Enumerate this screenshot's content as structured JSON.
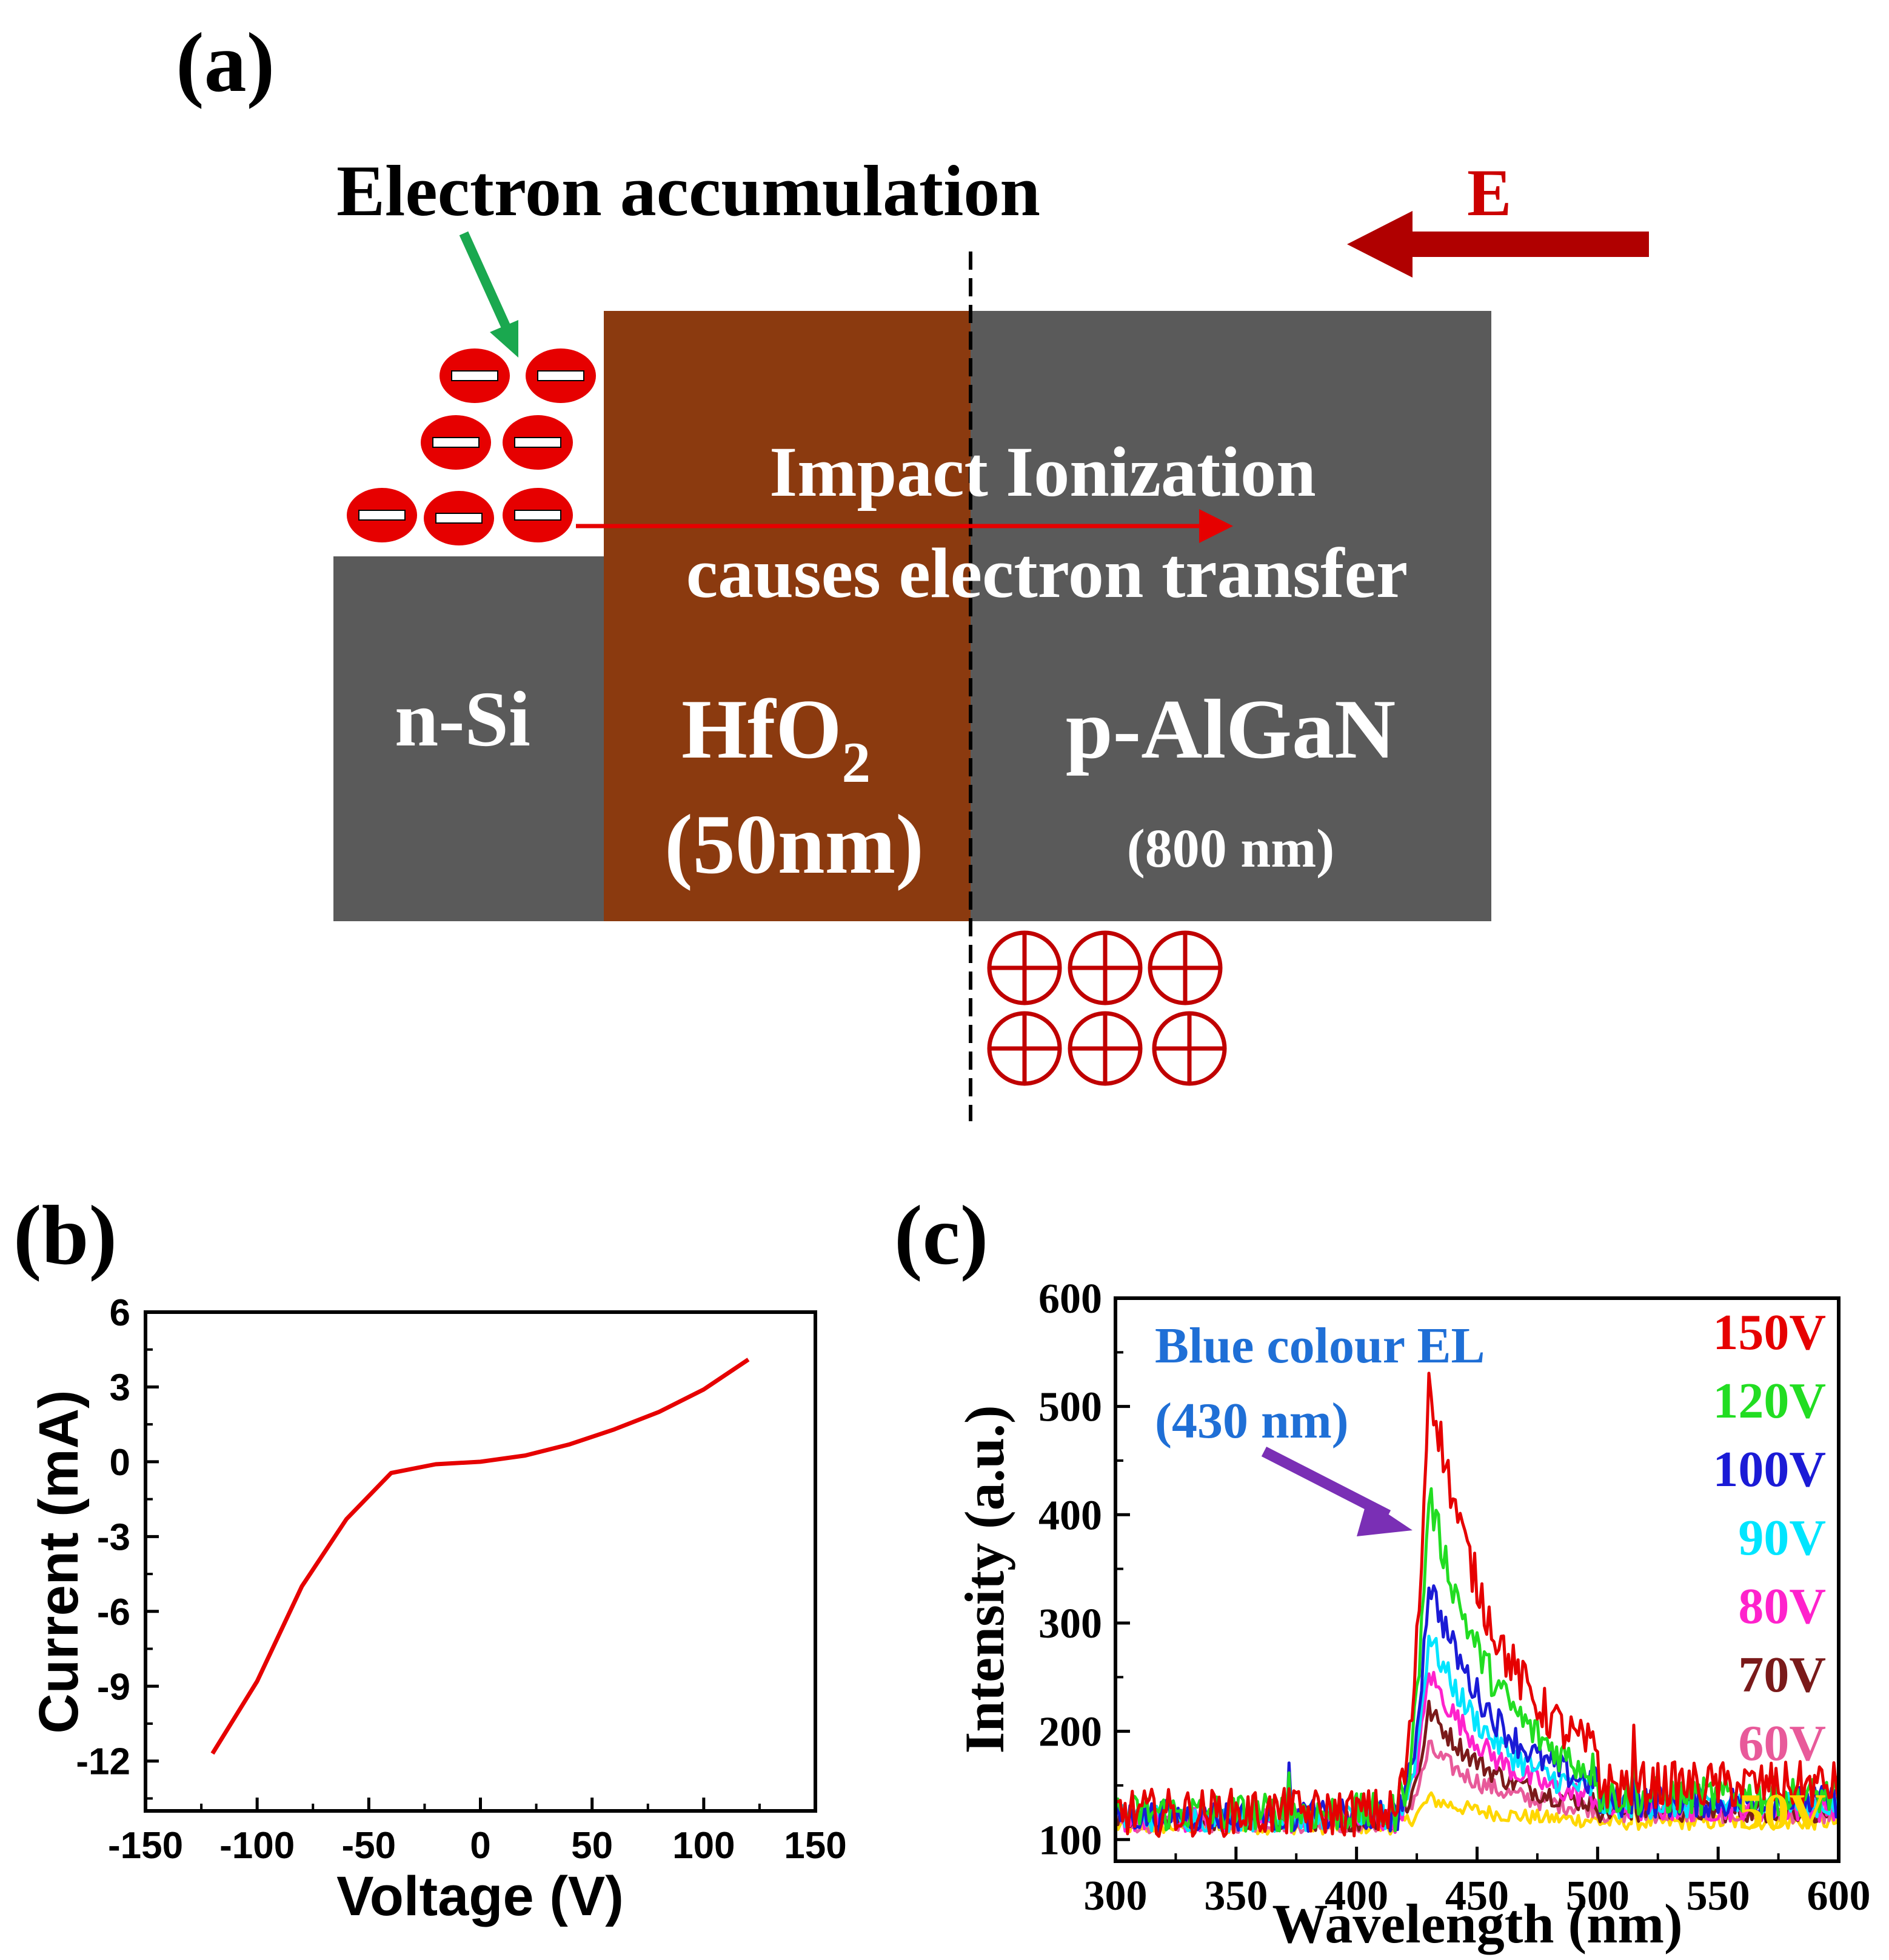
{
  "panel_a": {
    "label": "(a)",
    "top_annotation": "Electron accumulation",
    "field_label": "E",
    "impact_line1": "Impact Ionization",
    "impact_line2": "causes electron transfer",
    "nsi_label": "n-Si",
    "hfo2_main": "HfO",
    "hfo2_sub": "2",
    "hfo2_thickness": "(50nm)",
    "algan_label": "p-AlGaN",
    "algan_thickness": "(800 nm)",
    "colors": {
      "layer_gray": "#5a5a5a",
      "hfo2_brown": "#8b3a0f",
      "charge_red": "#e60000",
      "field_red": "#b00000",
      "green_arrow": "#1aa84f"
    },
    "icons": {
      "electron": "minus-circle-icon",
      "hole": "plus-circle-icon"
    }
  },
  "chart_data": [
    {
      "panel_label": "(b)",
      "type": "line",
      "title": "",
      "xlabel": "Voltage (V)",
      "ylabel": "Current (mA)",
      "xlim": [
        -150,
        150
      ],
      "ylim": [
        -14,
        6
      ],
      "xticks": [
        -150,
        -100,
        -50,
        0,
        50,
        100,
        150
      ],
      "yticks": [
        6,
        3,
        0,
        -3,
        -6,
        -9,
        -12
      ],
      "line_color": "#e60000",
      "series": [
        {
          "name": "I-V",
          "x": [
            -120,
            -100,
            -80,
            -60,
            -40,
            -20,
            0,
            20,
            40,
            60,
            80,
            100,
            120
          ],
          "y": [
            -11.7,
            -8.8,
            -5.0,
            -2.3,
            -0.45,
            -0.1,
            0,
            0.25,
            0.7,
            1.3,
            2.0,
            2.9,
            4.1
          ]
        }
      ]
    },
    {
      "panel_label": "(c)",
      "type": "line",
      "title": "",
      "xlabel": "Wavelength (nm)",
      "ylabel": "Intensity (a.u.)",
      "xlim": [
        300,
        600
      ],
      "ylim": [
        80,
        600
      ],
      "xticks": [
        300,
        350,
        400,
        450,
        500,
        550,
        600
      ],
      "yticks": [
        100,
        200,
        300,
        400,
        500,
        600
      ],
      "annotation_line1": "Blue colour EL",
      "annotation_line2": "(430 nm)",
      "annotation_color": "#1f6fd6",
      "arrow_color": "#7a2fb5",
      "peak_wavelength": 430,
      "baseline_shift_wavelength": 418,
      "series": [
        {
          "name": "150V",
          "color": "#e60000",
          "baseline": 125,
          "peak": 530,
          "tail": 150
        },
        {
          "name": "120V",
          "color": "#22dd22",
          "baseline": 125,
          "peak": 420,
          "tail": 140
        },
        {
          "name": "100V",
          "color": "#1b1bd6",
          "baseline": 122,
          "peak": 340,
          "tail": 135
        },
        {
          "name": "90V",
          "color": "#00e5ff",
          "baseline": 120,
          "peak": 290,
          "tail": 132
        },
        {
          "name": "80V",
          "color": "#ff22cc",
          "baseline": 118,
          "peak": 255,
          "tail": 128
        },
        {
          "name": "70V",
          "color": "#7a1a1a",
          "baseline": 118,
          "peak": 220,
          "tail": 126
        },
        {
          "name": "60V",
          "color": "#e85a9a",
          "baseline": 115,
          "peak": 185,
          "tail": 124
        },
        {
          "name": "50V",
          "color": "#ffd700",
          "baseline": 112,
          "peak": 138,
          "tail": 116
        }
      ]
    }
  ]
}
